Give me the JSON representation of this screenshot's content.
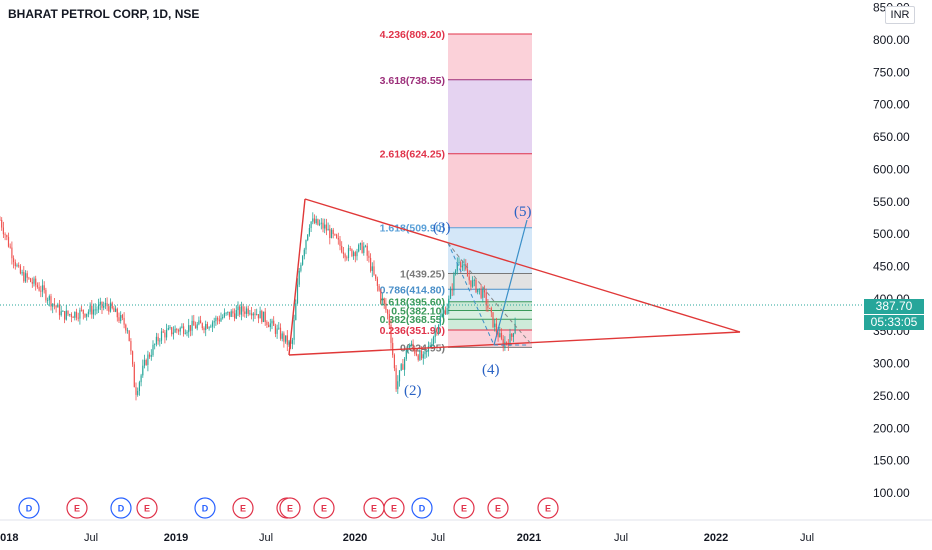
{
  "title": "BHARAT PETROL CORP, 1D, NSE",
  "currency_badge": "INR",
  "last_price": "387.70",
  "countdown": "05:33:05",
  "y_axis": {
    "ticks": [
      "850.00",
      "800.00",
      "750.00",
      "700.00",
      "650.00",
      "600.00",
      "550.00",
      "500.00",
      "450.00",
      "400.00",
      "350.00",
      "300.00",
      "250.00",
      "200.00",
      "150.00",
      "100.00"
    ],
    "range": [
      50,
      860
    ]
  },
  "x_axis": {
    "labels": [
      {
        "text": "2018",
        "bold": true
      },
      {
        "text": "Jul",
        "bold": false
      },
      {
        "text": "2019",
        "bold": true
      },
      {
        "text": "Jul",
        "bold": false
      },
      {
        "text": "2020",
        "bold": true
      },
      {
        "text": "Jul",
        "bold": false
      },
      {
        "text": "2021",
        "bold": true
      },
      {
        "text": "Jul",
        "bold": false
      },
      {
        "text": "2022",
        "bold": true
      },
      {
        "text": "Jul",
        "bold": false
      }
    ]
  },
  "fib_levels": [
    {
      "label": "4.236(809.20)",
      "value": 809.2,
      "color": "#e0334a"
    },
    {
      "label": "3.618(738.55)",
      "value": 738.55,
      "color": "#9c2f7a"
    },
    {
      "label": "2.618(624.25)",
      "value": 624.25,
      "color": "#e0334a"
    },
    {
      "label": "1.618(509.90)",
      "value": 509.9,
      "color": "#5aa0d8"
    },
    {
      "label": "1(439.25)",
      "value": 439.25,
      "color": "#787878"
    },
    {
      "label": "0.786(414.80)",
      "value": 414.8,
      "color": "#4a8fc8"
    },
    {
      "label": "0.618(395.60)",
      "value": 395.6,
      "color": "#3a9a5a"
    },
    {
      "label": "0.5(382.10)",
      "value": 382.1,
      "color": "#3a9a5a"
    },
    {
      "label": "0.382(368.55)",
      "value": 368.55,
      "color": "#3a9a5a"
    },
    {
      "label": "0.236(351.90)",
      "value": 351.9,
      "color": "#e0334a"
    },
    {
      "label": "0(324.95)",
      "value": 324.95,
      "color": "#787878"
    }
  ],
  "wave_labels": [
    "(2)",
    "(3)",
    "(4)",
    "(5)"
  ],
  "events": [
    "D",
    "E",
    "D",
    "E",
    "D",
    "E",
    "E",
    "E",
    "E",
    "E",
    "D",
    "E",
    "E",
    "E",
    "E"
  ],
  "colors": {
    "up": "#26a69a",
    "down": "#ef5350",
    "triangle": "#e03838",
    "wave": "#3a8fc8",
    "accent": "#2962ff"
  },
  "chart_data": {
    "type": "candlestick",
    "title": "BHARAT PETROL CORP, 1D, NSE",
    "ylim": [
      50,
      860
    ],
    "price_path": [
      [
        "2018-01-01",
        535
      ],
      [
        "2018-02-15",
        440
      ],
      [
        "2018-04-01",
        415
      ],
      [
        "2018-05-15",
        375
      ],
      [
        "2018-07-01",
        380
      ],
      [
        "2018-08-15",
        390
      ],
      [
        "2018-09-25",
        355
      ],
      [
        "2018-10-10",
        255
      ],
      [
        "2018-11-01",
        305
      ],
      [
        "2018-12-01",
        345
      ],
      [
        "2019-01-15",
        355
      ],
      [
        "2019-03-01",
        360
      ],
      [
        "2019-04-15",
        375
      ],
      [
        "2019-06-01",
        385
      ],
      [
        "2019-07-01",
        370
      ],
      [
        "2019-08-01",
        345
      ],
      [
        "2019-08-25",
        325
      ],
      [
        "2019-09-10",
        450
      ],
      [
        "2019-10-01",
        520
      ],
      [
        "2019-11-01",
        510
      ],
      [
        "2019-12-15",
        470
      ],
      [
        "2020-01-20",
        480
      ],
      [
        "2020-02-15",
        420
      ],
      [
        "2020-03-10",
        370
      ],
      [
        "2020-03-25",
        265
      ],
      [
        "2020-04-20",
        330
      ],
      [
        "2020-05-20",
        305
      ],
      [
        "2020-06-20",
        365
      ],
      [
        "2020-07-10",
        395
      ],
      [
        "2020-07-30",
        465
      ],
      [
        "2020-08-20",
        430
      ],
      [
        "2020-09-20",
        405
      ],
      [
        "2020-10-10",
        360
      ],
      [
        "2020-10-28",
        330
      ],
      [
        "2020-11-15",
        340
      ],
      [
        "2020-11-25",
        375
      ]
    ],
    "wave_points": [
      {
        "label": "(2)",
        "date": "2020-05-20",
        "value": 300
      },
      {
        "label": "(3)",
        "date": "2020-08-01",
        "value": 483
      },
      {
        "label": "(4)",
        "date": "2020-10-28",
        "value": 328
      },
      {
        "label": "(5)",
        "date": "2021-01-01",
        "value": 515
      }
    ],
    "fib_extension": [
      "4.236(809.20)",
      "3.618(738.55)",
      "2.618(624.25)",
      "1.618(509.90)",
      "1(439.25)",
      "0.786(414.80)",
      "0.618(395.60)",
      "0.5(382.10)",
      "0.382(368.55)",
      "0.236(351.90)",
      "0(324.95)"
    ]
  }
}
